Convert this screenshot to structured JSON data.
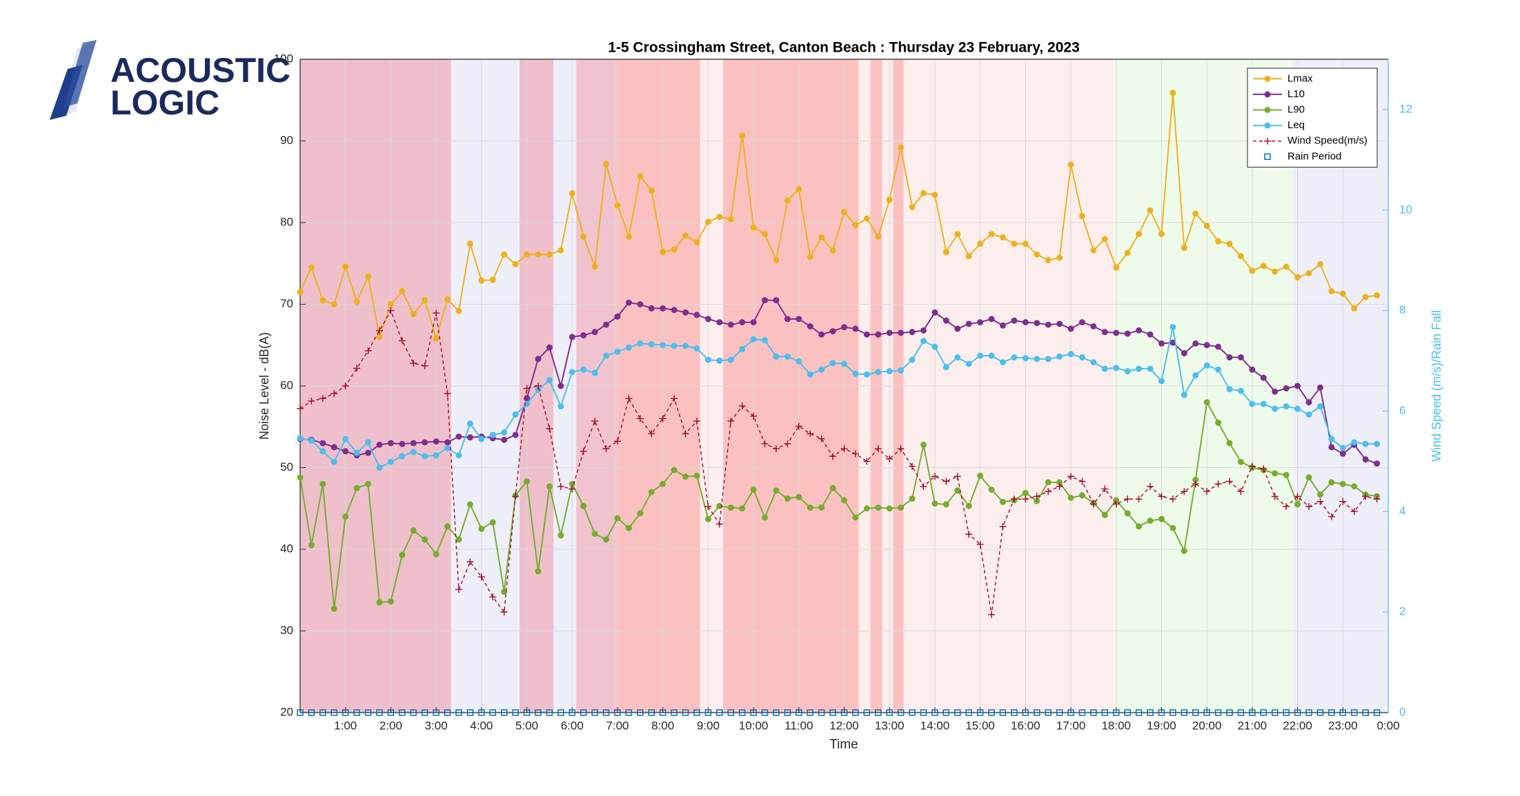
{
  "logo": {
    "line1": "ACOUSTIC",
    "line2": "LOGIC"
  },
  "chart_data": {
    "type": "line",
    "title": "1-5 Crossingham Street, Canton Beach :  Thursday  23 February, 2023",
    "x_label": "Time",
    "y_label": "Noise Level - dB(A)",
    "y2_label": "Wind Speed (m/s)/Rain Fall",
    "grid": true,
    "legend_position": "upper right",
    "xlim": [
      0,
      24
    ],
    "xticks": [
      {
        "value": 1,
        "label": "1:00"
      },
      {
        "value": 2,
        "label": "2:00"
      },
      {
        "value": 3,
        "label": "3:00"
      },
      {
        "value": 4,
        "label": "4:00"
      },
      {
        "value": 5,
        "label": "5:00"
      },
      {
        "value": 6,
        "label": "6:00"
      },
      {
        "value": 7,
        "label": "7:00"
      },
      {
        "value": 8,
        "label": "8:00"
      },
      {
        "value": 9,
        "label": "9:00"
      },
      {
        "value": 10,
        "label": "10:00"
      },
      {
        "value": 11,
        "label": "11:00"
      },
      {
        "value": 12,
        "label": "12:00"
      },
      {
        "value": 13,
        "label": "13:00"
      },
      {
        "value": 14,
        "label": "14:00"
      },
      {
        "value": 15,
        "label": "15:00"
      },
      {
        "value": 16,
        "label": "16:00"
      },
      {
        "value": 17,
        "label": "17:00"
      },
      {
        "value": 18,
        "label": "18:00"
      },
      {
        "value": 19,
        "label": "19:00"
      },
      {
        "value": 20,
        "label": "20:00"
      },
      {
        "value": 21,
        "label": "21:00"
      },
      {
        "value": 22,
        "label": "22:00"
      },
      {
        "value": 23,
        "label": "23:00"
      },
      {
        "value": 24,
        "label": "0:00"
      }
    ],
    "ylim": [
      20,
      100
    ],
    "yticks": [
      20,
      30,
      40,
      50,
      60,
      70,
      80,
      90,
      100
    ],
    "y2lim": [
      0,
      13
    ],
    "y2ticks": [
      0,
      2,
      4,
      6,
      8,
      10,
      12
    ],
    "bands": [
      {
        "start": 0,
        "end": 3.33,
        "color": "#efc0cb"
      },
      {
        "start": 3.33,
        "end": 4.84,
        "color": "#efeffa"
      },
      {
        "start": 4.84,
        "end": 5.59,
        "color": "#efc0cb"
      },
      {
        "start": 5.59,
        "end": 6.09,
        "color": "#efeffa"
      },
      {
        "start": 6.09,
        "end": 6.95,
        "color": "#f1c3cf"
      },
      {
        "start": 6.95,
        "end": 8.82,
        "color": "#fbc1c1"
      },
      {
        "start": 8.82,
        "end": 9.33,
        "color": "#fdeeee"
      },
      {
        "start": 9.33,
        "end": 12.32,
        "color": "#fbc1c1"
      },
      {
        "start": 12.32,
        "end": 12.58,
        "color": "#fdeeee"
      },
      {
        "start": 12.58,
        "end": 12.84,
        "color": "#fbc1c1"
      },
      {
        "start": 12.84,
        "end": 13.08,
        "color": "#fdeeee"
      },
      {
        "start": 13.08,
        "end": 13.31,
        "color": "#fbc1c1"
      },
      {
        "start": 13.31,
        "end": 17.94,
        "color": "#fdeeee"
      },
      {
        "start": 17.94,
        "end": 21.91,
        "color": "#effbea"
      },
      {
        "start": 21.91,
        "end": 24,
        "color": "#efeffa"
      }
    ],
    "x": [
      0,
      0.25,
      0.5,
      0.75,
      1,
      1.25,
      1.5,
      1.75,
      2,
      2.25,
      2.5,
      2.75,
      3,
      3.25,
      3.5,
      3.75,
      4,
      4.25,
      4.5,
      4.75,
      5,
      5.25,
      5.5,
      5.75,
      6,
      6.25,
      6.5,
      6.75,
      7,
      7.25,
      7.5,
      7.75,
      8,
      8.25,
      8.5,
      8.75,
      9,
      9.25,
      9.5,
      9.75,
      10,
      10.25,
      10.5,
      10.75,
      11,
      11.25,
      11.5,
      11.75,
      12,
      12.25,
      12.5,
      12.75,
      13,
      13.25,
      13.5,
      13.75,
      14,
      14.25,
      14.5,
      14.75,
      15,
      15.25,
      15.5,
      15.75,
      16,
      16.25,
      16.5,
      16.75,
      17,
      17.25,
      17.5,
      17.75,
      18,
      18.25,
      18.5,
      18.75,
      19,
      19.25,
      19.5,
      19.75,
      20,
      20.25,
      20.5,
      20.75,
      21,
      21.25,
      21.5,
      21.75,
      22,
      22.25,
      22.5,
      22.75,
      23,
      23.25,
      23.5,
      23.75
    ],
    "series": [
      {
        "name": "Lmax",
        "color": "#EDB120",
        "marker": "circle",
        "values": [
          71.5,
          74.5,
          70.5,
          70,
          74.6,
          70.3,
          73.4,
          66,
          70,
          71.6,
          68.8,
          70.5,
          65.8,
          70.6,
          69.2,
          77.4,
          72.9,
          73,
          76.1,
          74.9,
          76.1,
          76.1,
          76.1,
          76.6,
          83.6,
          78.3,
          74.6,
          87.2,
          82.1,
          78.3,
          85.7,
          83.9,
          76.4,
          76.7,
          78.4,
          77.6,
          80.1,
          80.7,
          80.4,
          90.7,
          79.4,
          78.6,
          75.4,
          82.7,
          84.1,
          75.8,
          78.2,
          76.6,
          81.3,
          79.7,
          80.5,
          78.3,
          82.8,
          89.2,
          81.9,
          83.6,
          83.4,
          76.4,
          78.6,
          75.9,
          77.4,
          78.6,
          78.2,
          77.4,
          77.4,
          76.1,
          75.4,
          75.7,
          87.1,
          80.8,
          76.6,
          78,
          74.5,
          76.3,
          78.6,
          81.5,
          78.6,
          95.9,
          76.9,
          81.1,
          79.6,
          77.7,
          77.4,
          75.9,
          74.1,
          74.7,
          74,
          74.6,
          73.3,
          73.8,
          74.9,
          71.6,
          71.3,
          69.5,
          70.9,
          71.1
        ]
      },
      {
        "name": "L10",
        "color": "#7E2F8E",
        "marker": "circle",
        "values": [
          53.5,
          53.4,
          53,
          52.5,
          52,
          51.5,
          51.8,
          52.8,
          53,
          52.9,
          53,
          53.1,
          53.2,
          53.1,
          53.8,
          53.7,
          53.8,
          53.6,
          53.4,
          54,
          58.5,
          63.3,
          64.7,
          60,
          66,
          66.2,
          66.6,
          67.5,
          68.5,
          70.2,
          70,
          69.5,
          69.5,
          69.3,
          69,
          68.7,
          68.2,
          67.8,
          67.5,
          67.8,
          67.8,
          70.5,
          70.5,
          68.2,
          68.2,
          67.3,
          66.3,
          66.7,
          67.2,
          67,
          66.3,
          66.3,
          66.5,
          66.5,
          66.6,
          66.8,
          69,
          68,
          67,
          67.6,
          67.8,
          68.2,
          67.4,
          68,
          67.8,
          67.7,
          67.5,
          67.6,
          67,
          67.8,
          67.3,
          66.6,
          66.5,
          66.4,
          66.8,
          66.3,
          65.2,
          65.3,
          64,
          65.2,
          65,
          64.8,
          63.5,
          63.5,
          62,
          61,
          59.3,
          59.7,
          60,
          58,
          59.8,
          52.5,
          51.7,
          52.8,
          51,
          50.5
        ]
      },
      {
        "name": "L90",
        "color": "#77AC30",
        "marker": "circle",
        "values": [
          48.8,
          40.5,
          48,
          32.7,
          44,
          47.5,
          48,
          33.5,
          33.6,
          39.3,
          42.3,
          41.2,
          39.4,
          42.8,
          41.2,
          45.5,
          42.5,
          43.3,
          34.8,
          46.6,
          48.3,
          37.3,
          47.7,
          41.7,
          48,
          45.3,
          41.9,
          41.2,
          43.8,
          42.6,
          44.4,
          47,
          48,
          49.7,
          48.9,
          49,
          43.7,
          45.3,
          45.1,
          45,
          47.3,
          43.9,
          47.2,
          46.2,
          46.4,
          45.1,
          45.1,
          47.5,
          46,
          43.9,
          45,
          45.1,
          45,
          45.1,
          46.2,
          52.8,
          45.6,
          45.5,
          47.2,
          45.3,
          49,
          47.3,
          45.8,
          46,
          46.9,
          45.9,
          48.2,
          48.2,
          46.3,
          46.6,
          45.7,
          44.2,
          46,
          44.4,
          42.8,
          43.5,
          43.7,
          42.6,
          39.8,
          48.5,
          58,
          55.5,
          53,
          50.7,
          50,
          49.7,
          49.3,
          49.1,
          45.5,
          48.8,
          46.7,
          48.2,
          48,
          47.7,
          46.7,
          46.5
        ]
      },
      {
        "name": "Leq",
        "color": "#4DBEEE",
        "marker": "circle",
        "values": [
          53.6,
          53.3,
          52,
          50.7,
          53.5,
          51.8,
          53.1,
          50,
          50.7,
          51.4,
          51.9,
          51.4,
          51.5,
          52.4,
          51.5,
          55.4,
          53.5,
          54,
          54.3,
          56.5,
          57.8,
          59.5,
          60.7,
          57.5,
          61.7,
          62,
          61.6,
          63.7,
          64.2,
          64.7,
          65.2,
          65.1,
          65,
          64.9,
          64.9,
          64.6,
          63.2,
          63.1,
          63.2,
          64.5,
          65.7,
          65.6,
          63.6,
          63.6,
          63,
          61.4,
          62,
          62.8,
          62.7,
          61.5,
          61.4,
          61.7,
          61.8,
          61.9,
          63.2,
          65.5,
          64.8,
          62.3,
          63.5,
          62.7,
          63.7,
          63.7,
          62.9,
          63.5,
          63.4,
          63.3,
          63.3,
          63.6,
          63.9,
          63.5,
          62.9,
          62.1,
          62.2,
          61.8,
          62.1,
          62.1,
          60.6,
          67.2,
          58.9,
          61.3,
          62.5,
          62,
          59.6,
          59.4,
          57.8,
          57.8,
          57.2,
          57.5,
          57.2,
          56.5,
          57.5,
          53.5,
          52.4,
          53.1,
          52.9,
          52.9
        ]
      },
      {
        "name": "Wind Speed(m/s)",
        "color": "#A2142F",
        "marker": "plus",
        "dashed": true,
        "axis": "y2",
        "values": [
          6.05,
          6.2,
          6.25,
          6.35,
          6.5,
          6.85,
          7.2,
          7.6,
          8,
          7.4,
          6.95,
          6.9,
          7.95,
          6.35,
          2.45,
          3,
          2.7,
          2.3,
          2,
          4.3,
          6.45,
          6.5,
          5.65,
          4.5,
          4.45,
          5.2,
          5.8,
          5.25,
          5.4,
          6.25,
          5.85,
          5.55,
          5.85,
          6.25,
          5.55,
          5.8,
          4.1,
          3.75,
          5.8,
          6.1,
          5.9,
          5.35,
          5.25,
          5.35,
          5.7,
          5.55,
          5.45,
          5.1,
          5.25,
          5.15,
          5,
          5.25,
          5.05,
          5.25,
          4.9,
          4.5,
          4.7,
          4.6,
          4.7,
          3.55,
          3.35,
          1.95,
          3.7,
          4.25,
          4.25,
          4.3,
          4.4,
          4.5,
          4.7,
          4.6,
          4.15,
          4.45,
          4.15,
          4.25,
          4.25,
          4.5,
          4.3,
          4.25,
          4.4,
          4.55,
          4.4,
          4.55,
          4.6,
          4.4,
          4.9,
          4.85,
          4.3,
          4.1,
          4.3,
          4.1,
          4.2,
          3.9,
          4.2,
          4,
          4.3,
          4.25
        ]
      },
      {
        "name": "Rain Period",
        "color": "#0072BD",
        "marker": "square",
        "line": false,
        "axis": "y2",
        "values": [
          0,
          0,
          0,
          0,
          0,
          0,
          0,
          0,
          0,
          0,
          0,
          0,
          0,
          0,
          0,
          0,
          0,
          0,
          0,
          0,
          0,
          0,
          0,
          0,
          0,
          0,
          0,
          0,
          0,
          0,
          0,
          0,
          0,
          0,
          0,
          0,
          0,
          0,
          0,
          0,
          0,
          0,
          0,
          0,
          0,
          0,
          0,
          0,
          0,
          0,
          0,
          0,
          0,
          0,
          0,
          0,
          0,
          0,
          0,
          0,
          0,
          0,
          0,
          0,
          0,
          0,
          0,
          0,
          0,
          0,
          0,
          0,
          0,
          0,
          0,
          0,
          0,
          0,
          0,
          0,
          0,
          0,
          0,
          0,
          0,
          0,
          0,
          0,
          0,
          0,
          0,
          0,
          0,
          0,
          0,
          0
        ]
      }
    ]
  }
}
